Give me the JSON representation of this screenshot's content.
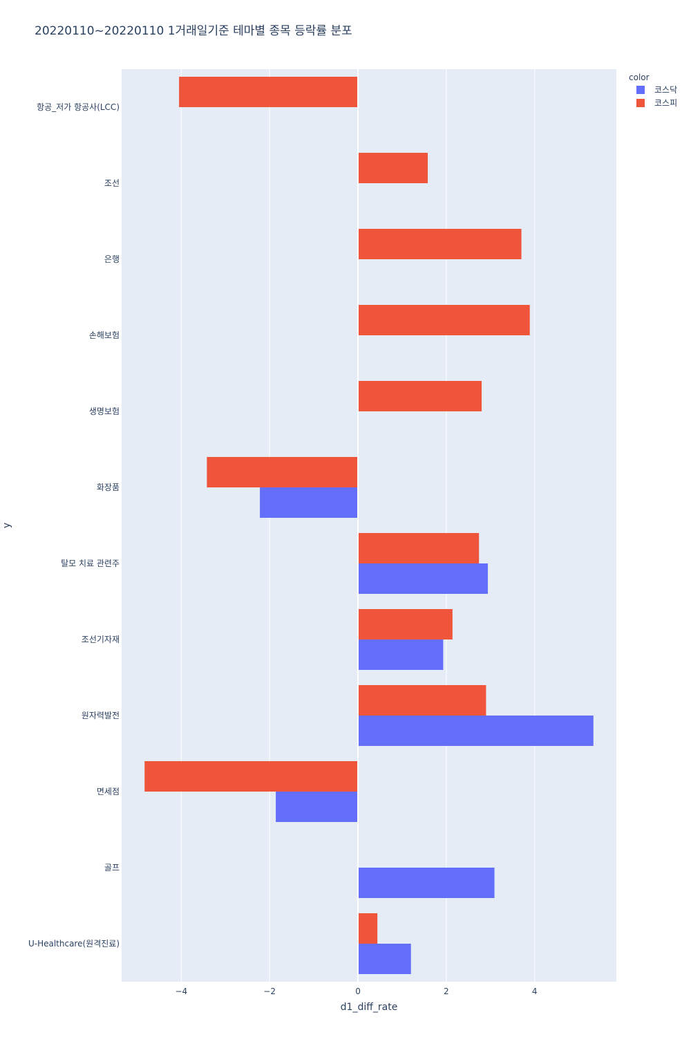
{
  "chart_data": {
    "type": "bar",
    "orientation": "horizontal",
    "barmode": "group",
    "title": "20220110~20220110 1거래일기준 테마별 종목 등락률 분포",
    "xlabel": "d1_diff_rate",
    "ylabel": "y",
    "xlim": [
      -5.35,
      5.85
    ],
    "xticks": [
      -4,
      -2,
      0,
      2,
      4
    ],
    "xtick_labels": [
      "−4",
      "−2",
      "0",
      "2",
      "4"
    ],
    "grid": true,
    "legend": {
      "title": "color",
      "placement": "top-right"
    },
    "categories": [
      "항공_저가 항공사(LCC)",
      "조선",
      "은행",
      "손해보험",
      "생명보험",
      "화장품",
      "탈모 치료 관련주",
      "조선기자재",
      "원자력발전",
      "면세점",
      "골프",
      "U-Healthcare(원격진료)"
    ],
    "series": [
      {
        "name": "코스닥",
        "color": "#636efa",
        "values": [
          null,
          null,
          null,
          null,
          null,
          -2.22,
          2.94,
          1.93,
          5.33,
          -1.86,
          3.09,
          1.2
        ]
      },
      {
        "name": "코스피",
        "color": "#ef553b",
        "values": [
          -4.05,
          1.58,
          3.7,
          3.89,
          2.8,
          -3.42,
          2.74,
          2.14,
          2.9,
          -4.83,
          null,
          0.44
        ]
      }
    ]
  }
}
